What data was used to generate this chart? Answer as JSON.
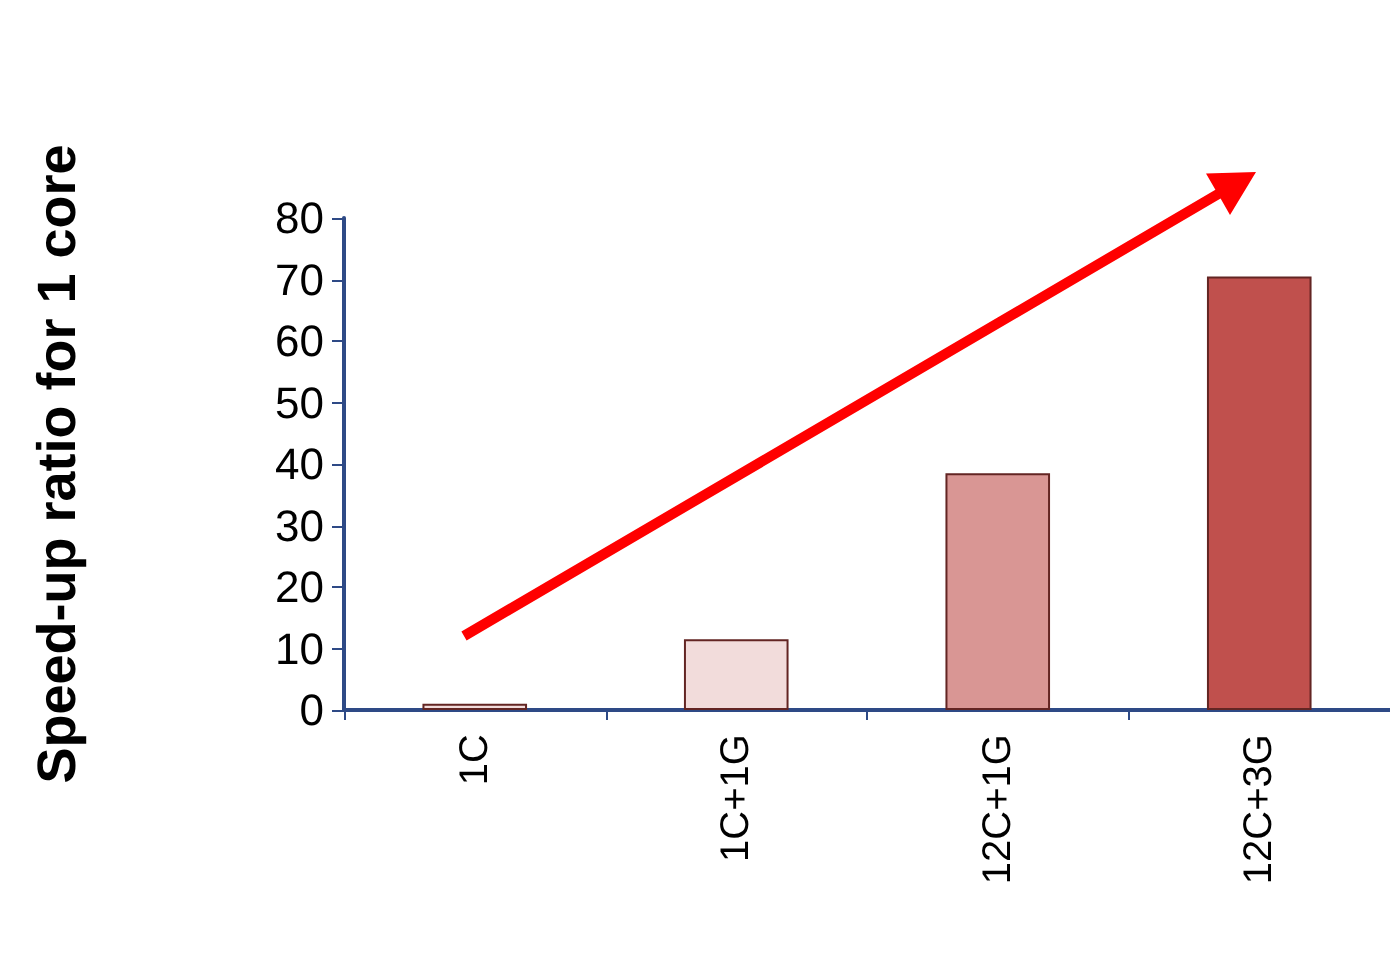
{
  "chart_data": {
    "type": "bar",
    "ylabel": "Speed-up ratio for 1 core",
    "categories": [
      "1C",
      "1C+1G",
      "12C+1G",
      "12C+3G"
    ],
    "values": [
      1,
      11.5,
      38.5,
      70.5
    ],
    "colors": [
      "#f2dcdb",
      "#f2dcdb",
      "#d99694",
      "#c0504d"
    ],
    "ylim": [
      0,
      80
    ],
    "yticks": [
      0,
      10,
      20,
      30,
      40,
      50,
      60,
      70,
      80
    ],
    "grid": false
  }
}
